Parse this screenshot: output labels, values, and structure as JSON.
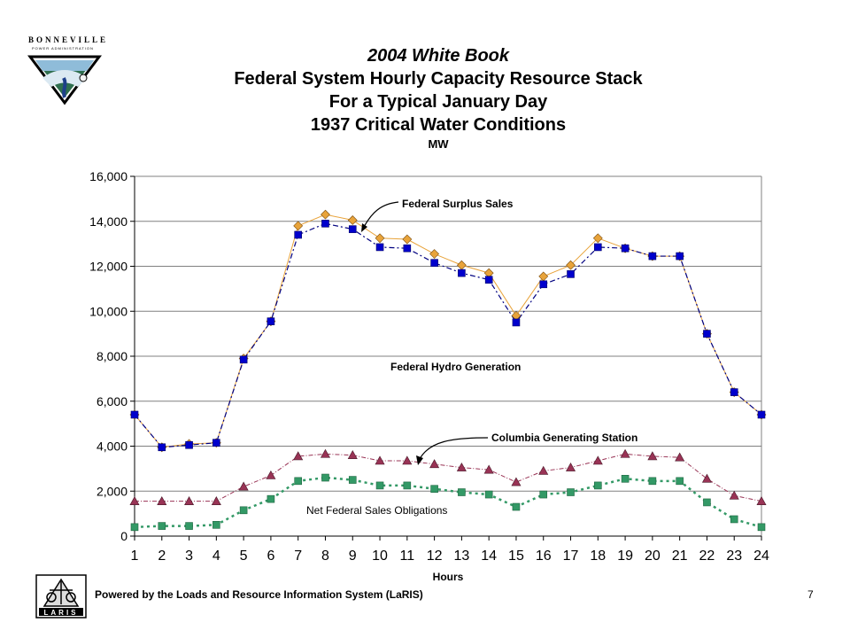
{
  "header": {
    "logo_text": "BONNEVILLE",
    "logo_subtext": "POWER ADMINISTRATION",
    "title_line1": "2004 White Book",
    "title_line2": "Federal System Hourly Capacity Resource Stack",
    "title_line3": "For a Typical January Day",
    "title_line4": "1937 Critical Water Conditions",
    "unit": "MW"
  },
  "footer": {
    "powered_by": "Powered by the Loads and Resource Information System (LaRIS)",
    "page_number": "7",
    "laris_logo_text": "LARIS"
  },
  "chart_data": {
    "type": "line",
    "title": "1937 Critical Water Conditions",
    "ylabel": "MW",
    "xlabel": "Hours",
    "x": [
      1,
      2,
      3,
      4,
      5,
      6,
      7,
      8,
      9,
      10,
      11,
      12,
      13,
      14,
      15,
      16,
      17,
      18,
      19,
      20,
      21,
      22,
      23,
      24
    ],
    "ylim": [
      0,
      16000
    ],
    "yticks": [
      0,
      2000,
      4000,
      6000,
      8000,
      10000,
      12000,
      14000,
      16000
    ],
    "ytick_labels": [
      "0",
      "2,000",
      "4,000",
      "6,000",
      "8,000",
      "10,000",
      "12,000",
      "14,000",
      "16,000"
    ],
    "grid": "horizontal",
    "series": [
      {
        "key": "surplus",
        "values": [
          5400,
          3950,
          4100,
          4150,
          7900,
          9550,
          13800,
          14300,
          14050,
          13250,
          13200,
          12550,
          12050,
          11700,
          9800,
          11550,
          12050,
          13250,
          12800,
          12450,
          12450,
          9000,
          6400,
          5400
        ],
        "color": "#e8a33a",
        "line_color": "#e8a33a",
        "marker": "diamond"
      },
      {
        "key": "hydro",
        "values": [
          5400,
          3950,
          4050,
          4150,
          7850,
          9550,
          13400,
          13900,
          13650,
          12850,
          12800,
          12150,
          11700,
          11400,
          9500,
          11200,
          11650,
          12850,
          12800,
          12450,
          12450,
          9000,
          6400,
          5400
        ],
        "color": "#0000cc",
        "line_color": "#000080",
        "marker": "square"
      },
      {
        "key": "cgs",
        "values": [
          1550,
          1550,
          1550,
          1550,
          2200,
          2700,
          3550,
          3650,
          3600,
          3350,
          3350,
          3200,
          3050,
          2950,
          2400,
          2900,
          3050,
          3350,
          3650,
          3550,
          3500,
          2550,
          1800,
          1550
        ],
        "color": "#993355",
        "line_color": "#993355",
        "marker": "triangle"
      },
      {
        "key": "net",
        "values": [
          400,
          450,
          450,
          500,
          1150,
          1650,
          2450,
          2600,
          2500,
          2250,
          2250,
          2100,
          1950,
          1850,
          1300,
          1850,
          1950,
          2250,
          2550,
          2450,
          2450,
          1500,
          750,
          400
        ],
        "color": "#339966",
        "line_color": "#339966",
        "marker": "square"
      }
    ],
    "annotations": {
      "surplus_label": "Federal Surplus Sales",
      "hydro_label": "Federal Hydro Generation",
      "cgs_label": "Columbia Generating Station",
      "net_label": "Net Federal Sales Obligations"
    }
  }
}
